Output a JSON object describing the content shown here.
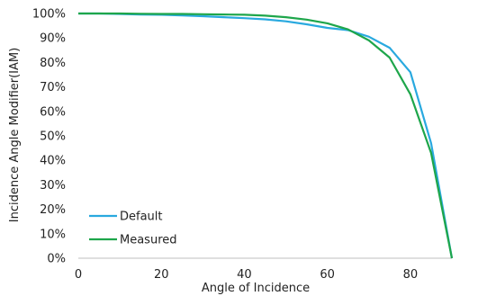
{
  "chart_data": {
    "type": "line",
    "xlabel": "Angle of Incidence",
    "ylabel": "Incidence Angle Modifier(IAM)",
    "xlim": [
      0,
      90
    ],
    "ylim": [
      0,
      100
    ],
    "x_ticks": [
      0,
      20,
      40,
      60,
      80
    ],
    "x_tick_labels": [
      "0",
      "20",
      "40",
      "60",
      "80"
    ],
    "y_ticks": [
      0,
      10,
      20,
      30,
      40,
      50,
      60,
      70,
      80,
      90,
      100
    ],
    "y_tick_labels": [
      "0%",
      "10%",
      "20%",
      "30%",
      "40%",
      "50%",
      "60%",
      "70%",
      "80%",
      "90%",
      "100%"
    ],
    "grid": false,
    "legend_position": "bottom-left",
    "series": [
      {
        "name": "Default",
        "color": "#29a9df",
        "x": [
          0,
          5,
          10,
          15,
          20,
          25,
          30,
          35,
          40,
          45,
          50,
          55,
          60,
          65,
          70,
          75,
          80,
          85,
          90
        ],
        "y": [
          100,
          100,
          99.8,
          99.6,
          99.5,
          99.2,
          98.9,
          98.5,
          98.1,
          97.6,
          96.8,
          95.6,
          94.1,
          93.2,
          90.5,
          86,
          76,
          47,
          0
        ]
      },
      {
        "name": "Measured",
        "color": "#1ea64b",
        "x": [
          0,
          5,
          10,
          15,
          20,
          25,
          30,
          35,
          40,
          45,
          50,
          55,
          60,
          65,
          70,
          75,
          80,
          85,
          90
        ],
        "y": [
          100,
          100,
          100,
          99.9,
          99.8,
          99.8,
          99.7,
          99.6,
          99.5,
          99.1,
          98.5,
          97.5,
          96,
          93.5,
          89,
          82,
          67,
          43,
          0
        ]
      }
    ]
  }
}
